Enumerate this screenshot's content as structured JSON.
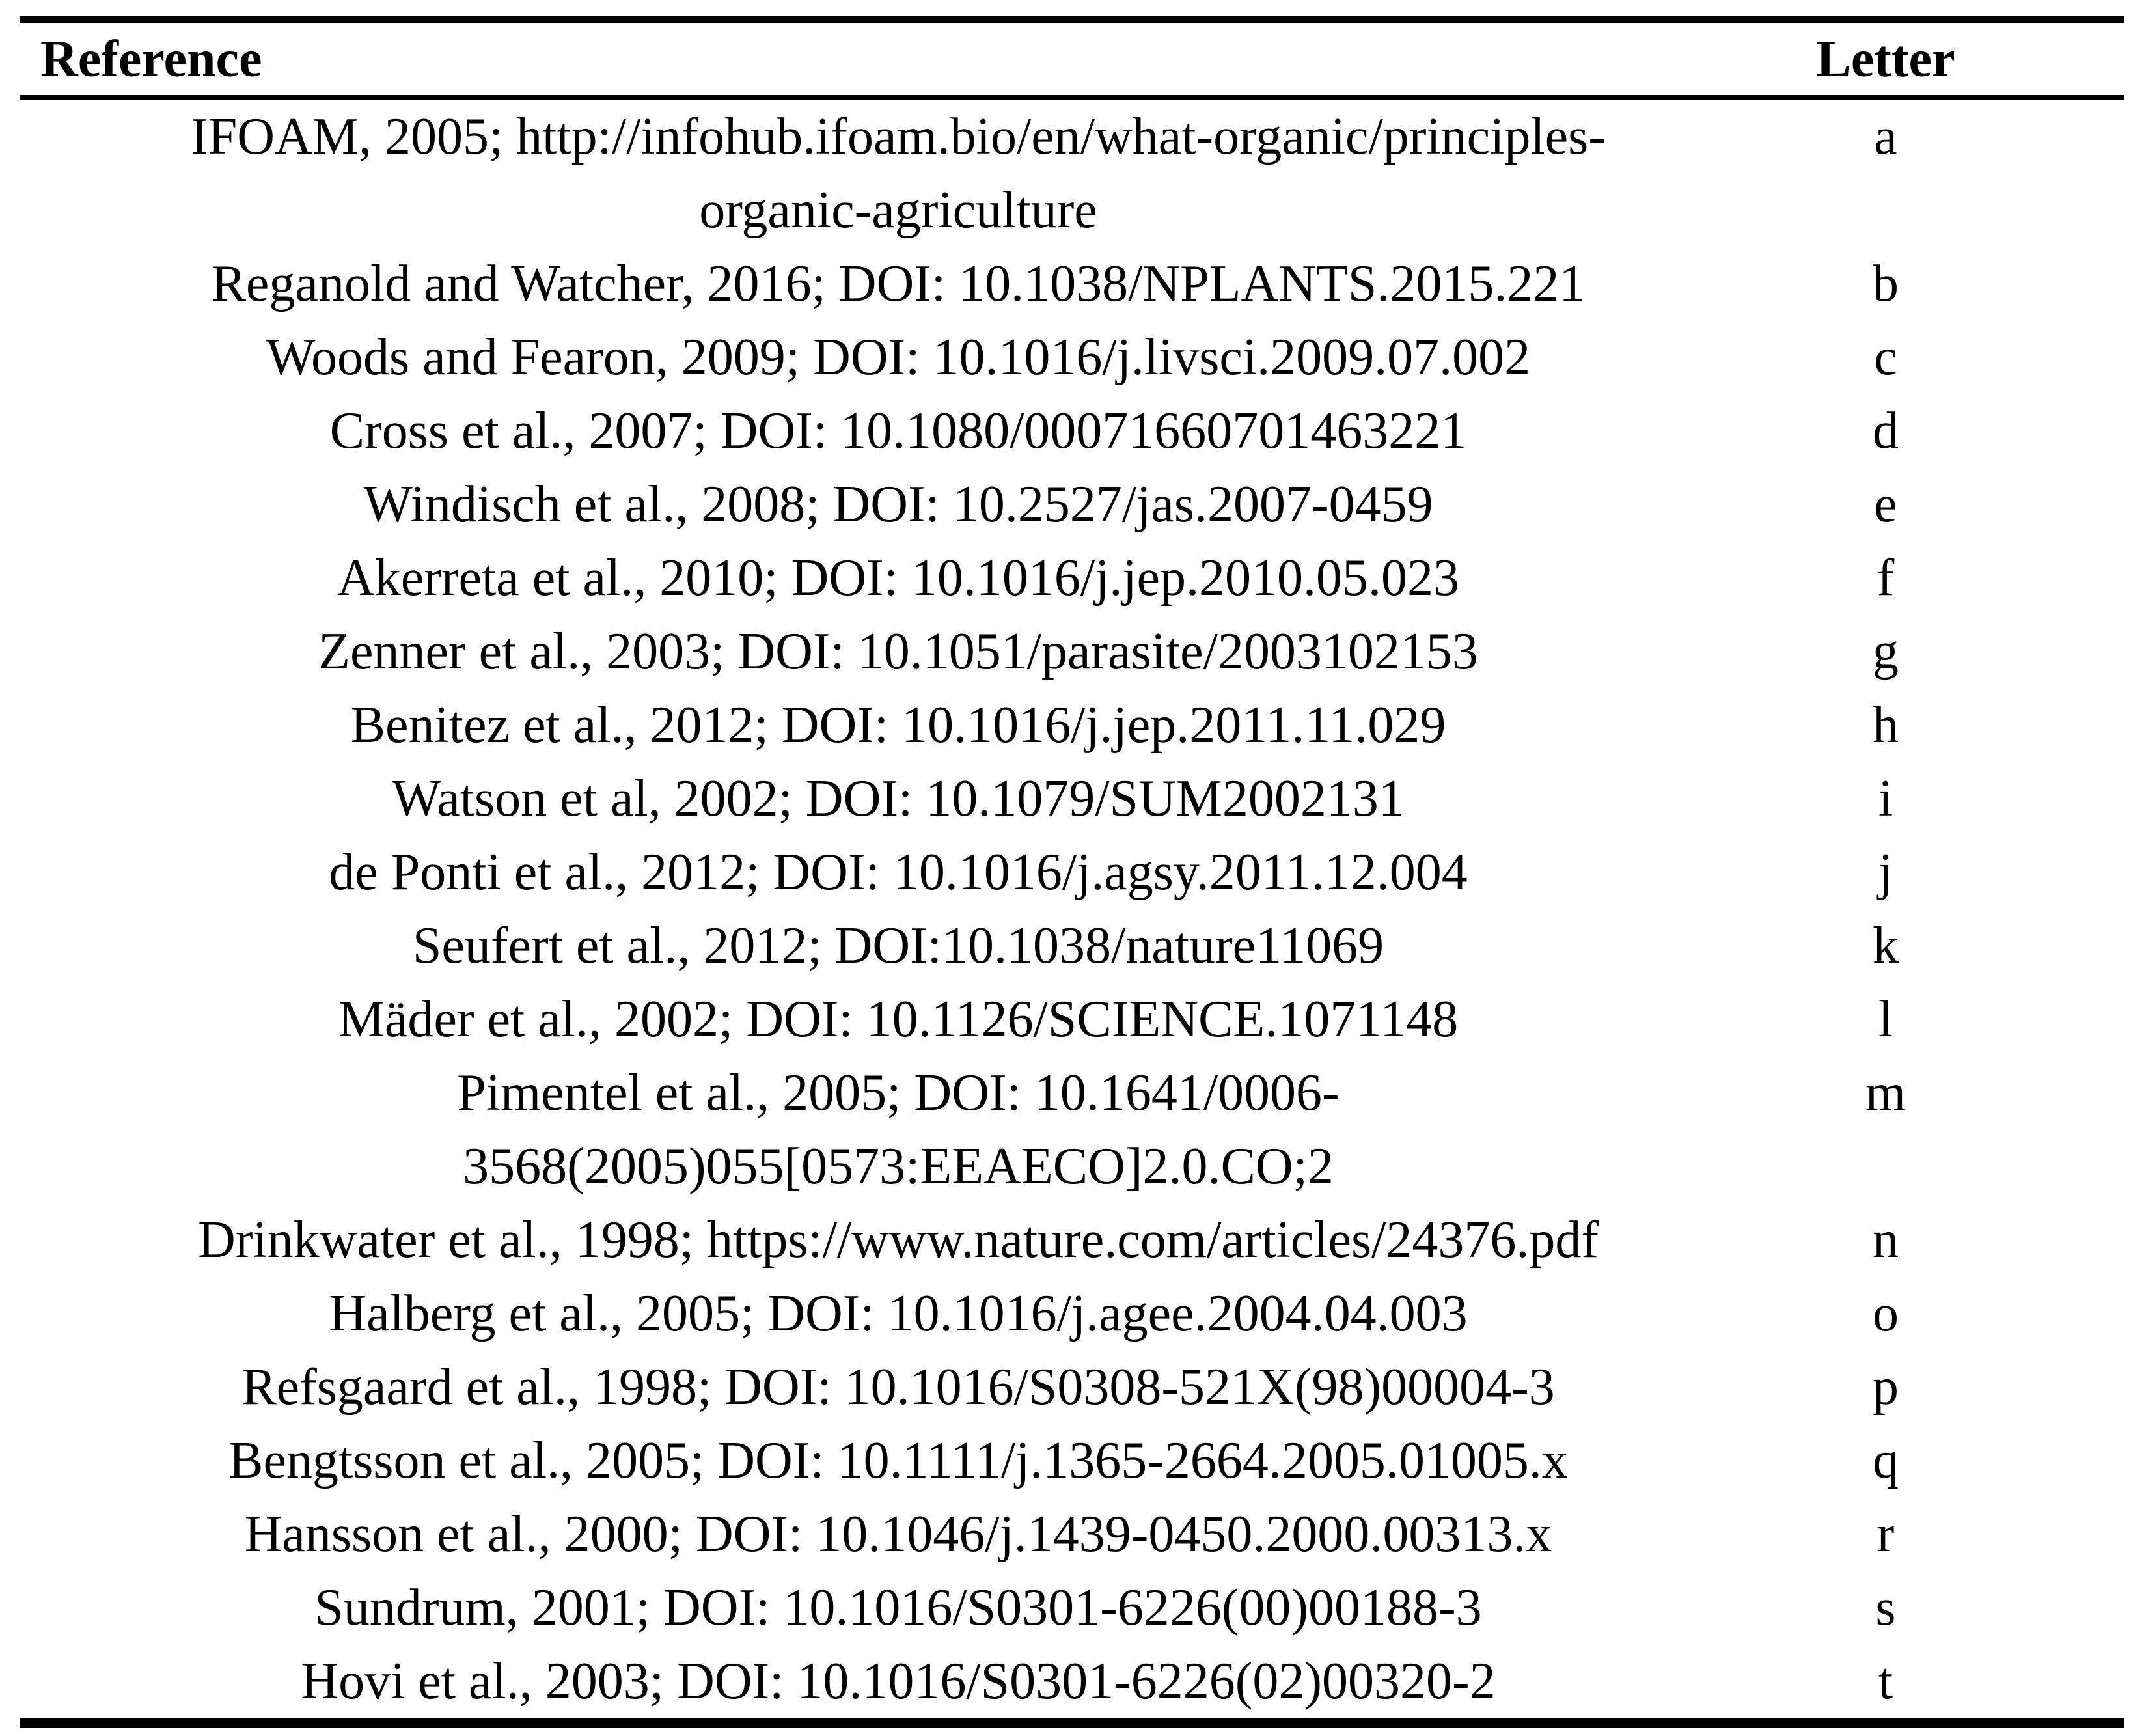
{
  "table": {
    "columns": [
      "Reference",
      "Letter"
    ],
    "rows": [
      {
        "reference": "IFOAM, 2005; http://infohub.ifoam.bio/en/what-organic/principles-\norganic-agriculture",
        "letter": "a"
      },
      {
        "reference": "Reganold and Watcher, 2016; DOI: 10.1038/NPLANTS.2015.221",
        "letter": "b"
      },
      {
        "reference": "Woods and Fearon, 2009; DOI: 10.1016/j.livsci.2009.07.002",
        "letter": "c"
      },
      {
        "reference": "Cross et al., 2007; DOI: 10.1080/00071660701463221",
        "letter": "d"
      },
      {
        "reference": "Windisch et al., 2008; DOI: 10.2527/jas.2007-0459",
        "letter": "e"
      },
      {
        "reference": "Akerreta et al., 2010; DOI: 10.1016/j.jep.2010.05.023",
        "letter": "f"
      },
      {
        "reference": "Zenner et al., 2003; DOI: 10.1051/parasite/2003102153",
        "letter": "g"
      },
      {
        "reference": "Benitez et al., 2012; DOI: 10.1016/j.jep.2011.11.029",
        "letter": "h"
      },
      {
        "reference": "Watson et al, 2002; DOI: 10.1079/SUM2002131",
        "letter": "i"
      },
      {
        "reference": "de Ponti et al., 2012; DOI: 10.1016/j.agsy.2011.12.004",
        "letter": "j"
      },
      {
        "reference": "Seufert et al., 2012; DOI:10.1038/nature11069",
        "letter": "k"
      },
      {
        "reference": "Mäder et al., 2002; DOI: 10.1126/SCIENCE.1071148",
        "letter": "l"
      },
      {
        "reference": "Pimentel et al., 2005; DOI: 10.1641/0006-\n3568(2005)055[0573:EEAECO]2.0.CO;2",
        "letter": "m"
      },
      {
        "reference": "Drinkwater et al., 1998; https://www.nature.com/articles/24376.pdf",
        "letter": "n"
      },
      {
        "reference": "Halberg et al., 2005; DOI: 10.1016/j.agee.2004.04.003",
        "letter": "o"
      },
      {
        "reference": "Refsgaard et al., 1998; DOI: 10.1016/S0308-521X(98)00004-3",
        "letter": "p"
      },
      {
        "reference": "Bengtsson et al., 2005; DOI: 10.1111/j.1365-2664.2005.01005.x",
        "letter": "q"
      },
      {
        "reference": "Hansson et al., 2000; DOI: 10.1046/j.1439-0450.2000.00313.x",
        "letter": "r"
      },
      {
        "reference": "Sundrum, 2001; DOI: 10.1016/S0301-6226(00)00188-3",
        "letter": "s"
      },
      {
        "reference": "Hovi et al., 2003; DOI: 10.1016/S0301-6226(02)00320-2",
        "letter": "t"
      }
    ]
  }
}
